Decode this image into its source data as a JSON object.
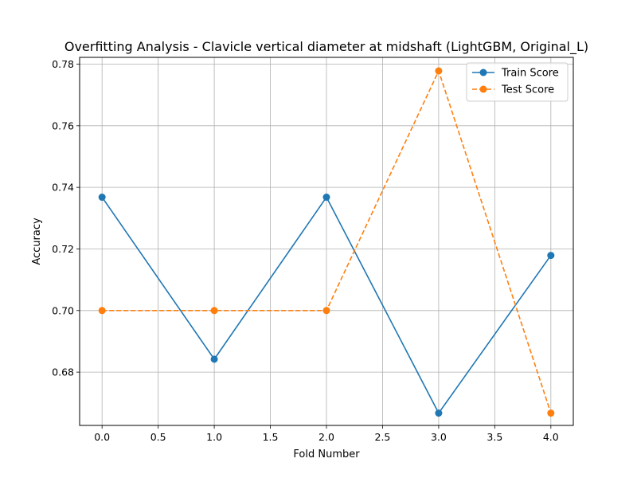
{
  "chart_data": {
    "type": "line",
    "title": "Overfitting Analysis - Clavicle vertical diameter at midshaft (LightGBM, Original_L)",
    "xlabel": "Fold Number",
    "ylabel": "Accuracy",
    "x": [
      0,
      1,
      2,
      3,
      4
    ],
    "xlim": [
      -0.2,
      4.2
    ],
    "ylim": [
      0.6627,
      0.7822
    ],
    "xticks": [
      0.0,
      0.5,
      1.0,
      1.5,
      2.0,
      2.5,
      3.0,
      3.5,
      4.0
    ],
    "xtick_labels": [
      "0.0",
      "0.5",
      "1.0",
      "1.5",
      "2.0",
      "2.5",
      "3.0",
      "3.5",
      "4.0"
    ],
    "yticks": [
      0.68,
      0.7,
      0.72,
      0.74,
      0.76,
      0.78
    ],
    "ytick_labels": [
      "0.68",
      "0.70",
      "0.72",
      "0.74",
      "0.76",
      "0.78"
    ],
    "grid": true,
    "legend_position": "top-right",
    "series": [
      {
        "name": "Train Score",
        "values": [
          0.7368,
          0.6842,
          0.7368,
          0.6667,
          0.7179
        ],
        "color": "#1f77b4",
        "line_style": "solid",
        "marker": "circle"
      },
      {
        "name": "Test Score",
        "values": [
          0.7,
          0.7,
          0.7,
          0.7778,
          0.6667
        ],
        "color": "#ff7f0e",
        "line_style": "dashed",
        "marker": "circle"
      }
    ]
  }
}
